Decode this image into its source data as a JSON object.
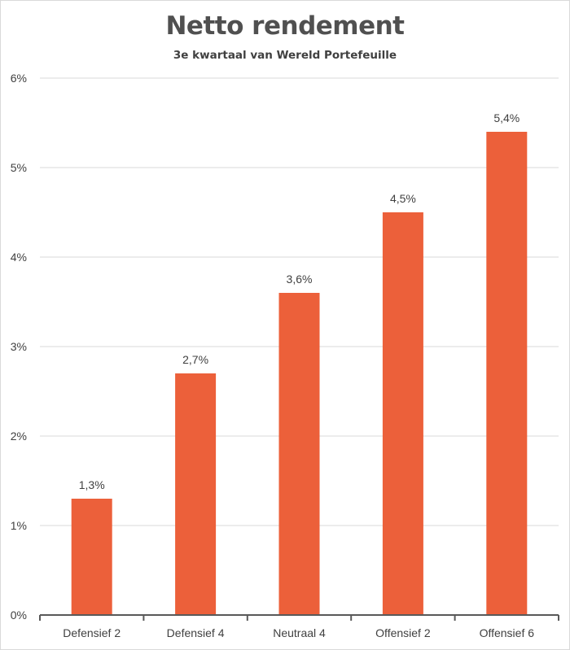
{
  "chart_data": {
    "type": "bar",
    "title": "Netto rendement",
    "subtitle": "3e kwartaal van Wereld Portefeuille",
    "categories": [
      "Defensief 2",
      "Defensief 4",
      "Neutraal 4",
      "Offensief 2",
      "Offensief 6"
    ],
    "values": [
      1.3,
      2.7,
      3.6,
      4.5,
      5.4
    ],
    "data_labels": [
      "1,3%",
      "2,7%",
      "3,6%",
      "4,5%",
      "5,4%"
    ],
    "yticks": [
      "0%",
      "1%",
      "2%",
      "3%",
      "4%",
      "5%",
      "6%"
    ],
    "ylim": [
      0,
      6
    ],
    "grid": true,
    "bar_color": "#ec603a"
  }
}
